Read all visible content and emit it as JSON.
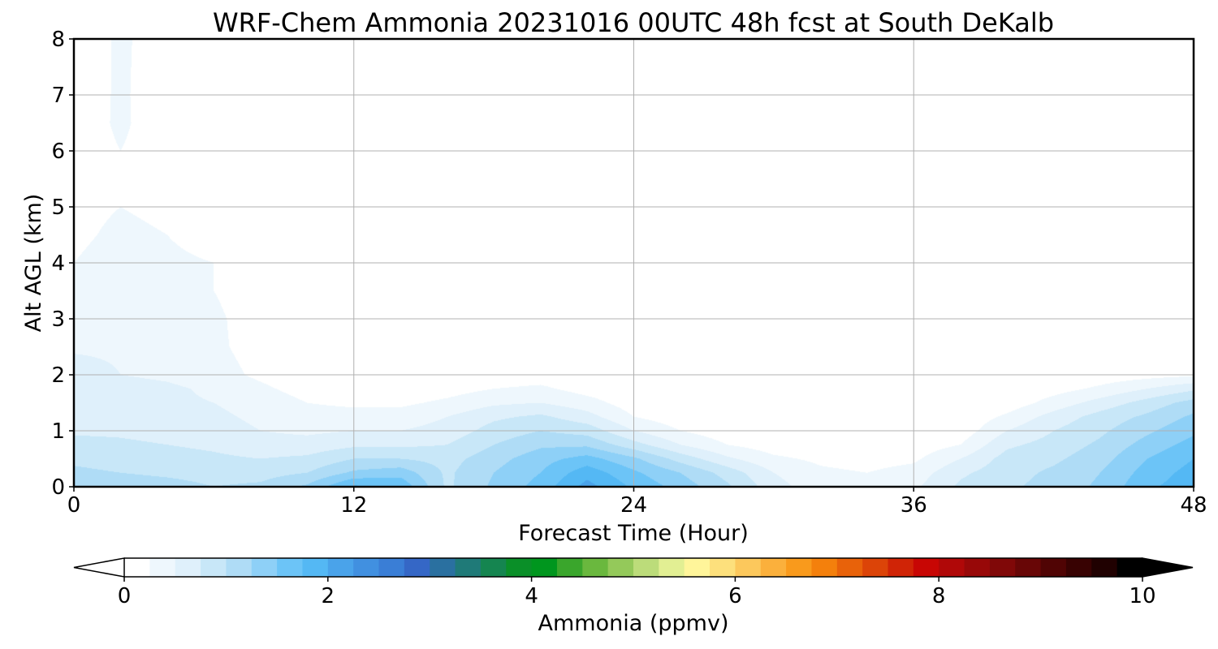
{
  "chart_data": {
    "type": "heatmap",
    "title": "WRF-Chem Ammonia  20231016 00UTC 48h fcst at South DeKalb",
    "xlabel": "Forecast Time (Hour)",
    "ylabel": "Alt AGL (km)",
    "xlim": [
      0,
      48
    ],
    "ylim": [
      0,
      8
    ],
    "xticks": [
      0,
      12,
      24,
      36,
      48
    ],
    "yticks": [
      0,
      1,
      2,
      3,
      4,
      5,
      6,
      7,
      8
    ],
    "grid": true,
    "colorbar": {
      "label": "Ammonia  (ppmv)",
      "min": 0,
      "max": 10,
      "ticks": [
        0,
        2,
        4,
        6,
        8,
        10
      ],
      "extend": "both",
      "orientation": "horizontal",
      "colors": [
        "#ffffff",
        "#eef7fd",
        "#dff0fb",
        "#c8e7f8",
        "#afdcf6",
        "#8ed0f7",
        "#6cc4f7",
        "#54b8f4",
        "#4aa3ea",
        "#4190e0",
        "#3a7ed6",
        "#3567c6",
        "#2a70a0",
        "#1f7a78",
        "#158550",
        "#0a8f28",
        "#00961e",
        "#3aa62c",
        "#6ab83e",
        "#94c95a",
        "#bcdc7a",
        "#e2ef93",
        "#fff59a",
        "#fde07c",
        "#fcc85c",
        "#fbb03c",
        "#f99a1c",
        "#f4800c",
        "#e8620a",
        "#dc4408",
        "#d02406",
        "#c80604",
        "#b00808",
        "#980808",
        "#800808",
        "#680606",
        "#500404",
        "#380202",
        "#200101",
        "#000000"
      ]
    },
    "x": [
      0,
      2,
      4,
      6,
      8,
      10,
      12,
      14,
      16,
      18,
      20,
      22,
      24,
      26,
      28,
      30,
      32,
      34,
      36,
      38,
      40,
      42,
      44,
      46,
      48
    ],
    "y": [
      0,
      0.25,
      0.5,
      0.75,
      1,
      1.25,
      1.5,
      1.75,
      2,
      2.5,
      3,
      3.5,
      4,
      4.5,
      5,
      5.5,
      6,
      6.5,
      7,
      7.5,
      8
    ],
    "z": [
      [
        1.15,
        1.15,
        1.1,
        1.0,
        1.05,
        1.3,
        1.8,
        1.7,
        0.95,
        1.3,
        1.6,
        2.1,
        1.7,
        1.4,
        1.05,
        0.6,
        0.35,
        0.3,
        0.45,
        0.8,
        0.95,
        1.1,
        1.3,
        1.7,
        1.9
      ],
      [
        1.05,
        1.0,
        0.95,
        0.9,
        0.9,
        1.0,
        1.3,
        1.4,
        0.95,
        1.25,
        1.5,
        1.9,
        1.55,
        1.25,
        0.9,
        0.5,
        0.3,
        0.25,
        0.35,
        0.7,
        0.9,
        1.05,
        1.25,
        1.6,
        1.85
      ],
      [
        0.95,
        0.9,
        0.85,
        0.8,
        0.75,
        0.8,
        1.0,
        1.0,
        0.9,
        1.15,
        1.4,
        1.6,
        1.3,
        0.9,
        0.55,
        0.3,
        0.2,
        0.15,
        0.2,
        0.5,
        0.85,
        0.95,
        1.15,
        1.5,
        1.75
      ],
      [
        0.85,
        0.8,
        0.75,
        0.7,
        0.6,
        0.6,
        0.7,
        0.7,
        0.75,
        1.0,
        1.2,
        1.2,
        0.85,
        0.5,
        0.25,
        0.12,
        0.08,
        0.08,
        0.1,
        0.25,
        0.7,
        0.85,
        1.05,
        1.35,
        1.6
      ],
      [
        0.7,
        0.7,
        0.65,
        0.6,
        0.5,
        0.45,
        0.5,
        0.5,
        0.6,
        0.85,
        1.0,
        0.9,
        0.5,
        0.25,
        0.1,
        0.05,
        0.04,
        0.04,
        0.05,
        0.1,
        0.5,
        0.75,
        0.95,
        1.2,
        1.45
      ],
      [
        0.65,
        0.65,
        0.6,
        0.55,
        0.45,
        0.35,
        0.35,
        0.35,
        0.5,
        0.7,
        0.8,
        0.6,
        0.25,
        0.1,
        0.05,
        0.03,
        0.02,
        0.02,
        0.03,
        0.05,
        0.3,
        0.6,
        0.85,
        1.05,
        1.3
      ],
      [
        0.65,
        0.6,
        0.55,
        0.5,
        0.4,
        0.25,
        0.2,
        0.2,
        0.3,
        0.45,
        0.5,
        0.35,
        0.12,
        0.05,
        0.03,
        0.02,
        0.01,
        0.01,
        0.01,
        0.03,
        0.1,
        0.35,
        0.6,
        0.85,
        1.1
      ],
      [
        0.7,
        0.6,
        0.55,
        0.45,
        0.3,
        0.15,
        0.1,
        0.1,
        0.15,
        0.25,
        0.3,
        0.15,
        0.05,
        0.02,
        0.01,
        0.01,
        0.01,
        0.01,
        0.01,
        0.01,
        0.04,
        0.15,
        0.3,
        0.5,
        0.7
      ],
      [
        0.65,
        0.5,
        0.45,
        0.35,
        0.2,
        0.08,
        0.05,
        0.05,
        0.06,
        0.1,
        0.12,
        0.05,
        0.02,
        0.01,
        0.01,
        0.01,
        0.01,
        0.01,
        0.01,
        0.01,
        0.01,
        0.05,
        0.1,
        0.15,
        0.2
      ],
      [
        0.45,
        0.45,
        0.4,
        0.3,
        0.15,
        0.05,
        0.02,
        0.02,
        0.02,
        0.03,
        0.03,
        0.02,
        0.01,
        0.01,
        0.01,
        0.01,
        0.01,
        0.01,
        0.01,
        0.01,
        0.01,
        0.01,
        0.02,
        0.02,
        0.03
      ],
      [
        0.35,
        0.4,
        0.45,
        0.3,
        0.12,
        0.03,
        0.01,
        0.01,
        0.01,
        0.01,
        0.01,
        0.01,
        0.01,
        0.01,
        0.01,
        0.01,
        0.01,
        0.01,
        0.01,
        0.01,
        0.01,
        0.01,
        0.01,
        0.01,
        0.01
      ],
      [
        0.3,
        0.35,
        0.35,
        0.25,
        0.1,
        0.02,
        0.01,
        0.01,
        0.01,
        0.01,
        0.01,
        0.01,
        0.01,
        0.01,
        0.01,
        0.01,
        0.01,
        0.01,
        0.01,
        0.01,
        0.01,
        0.01,
        0.01,
        0.01,
        0.01
      ],
      [
        0.25,
        0.35,
        0.3,
        0.25,
        0.1,
        0.02,
        0.01,
        0.01,
        0.01,
        0.01,
        0.01,
        0.01,
        0.01,
        0.01,
        0.01,
        0.01,
        0.01,
        0.01,
        0.01,
        0.01,
        0.01,
        0.01,
        0.01,
        0.01,
        0.01
      ],
      [
        0.2,
        0.3,
        0.25,
        0.15,
        0.08,
        0.02,
        0.01,
        0.01,
        0.01,
        0.01,
        0.01,
        0.01,
        0.01,
        0.01,
        0.01,
        0.01,
        0.01,
        0.01,
        0.01,
        0.01,
        0.01,
        0.01,
        0.01,
        0.01,
        0.01
      ],
      [
        0.18,
        0.25,
        0.2,
        0.1,
        0.05,
        0.02,
        0.01,
        0.01,
        0.01,
        0.01,
        0.01,
        0.01,
        0.01,
        0.01,
        0.01,
        0.01,
        0.01,
        0.01,
        0.01,
        0.01,
        0.01,
        0.01,
        0.01,
        0.01,
        0.01
      ],
      [
        0.15,
        0.2,
        0.15,
        0.08,
        0.04,
        0.01,
        0.01,
        0.01,
        0.01,
        0.01,
        0.01,
        0.01,
        0.01,
        0.01,
        0.01,
        0.01,
        0.01,
        0.01,
        0.01,
        0.01,
        0.01,
        0.01,
        0.01,
        0.01,
        0.01
      ],
      [
        0.1,
        0.25,
        0.1,
        0.05,
        0.02,
        0.01,
        0.01,
        0.01,
        0.01,
        0.01,
        0.01,
        0.01,
        0.01,
        0.01,
        0.01,
        0.01,
        0.01,
        0.01,
        0.01,
        0.01,
        0.01,
        0.01,
        0.01,
        0.01,
        0.01
      ],
      [
        0.08,
        0.3,
        0.08,
        0.04,
        0.02,
        0.01,
        0.01,
        0.01,
        0.01,
        0.01,
        0.01,
        0.01,
        0.01,
        0.01,
        0.01,
        0.01,
        0.01,
        0.01,
        0.01,
        0.01,
        0.01,
        0.01,
        0.01,
        0.01,
        0.01
      ],
      [
        0.06,
        0.3,
        0.06,
        0.04,
        0.02,
        0.01,
        0.01,
        0.01,
        0.01,
        0.01,
        0.01,
        0.01,
        0.01,
        0.01,
        0.01,
        0.01,
        0.01,
        0.01,
        0.01,
        0.01,
        0.01,
        0.01,
        0.01,
        0.01,
        0.01
      ],
      [
        0.05,
        0.3,
        0.08,
        0.05,
        0.02,
        0.01,
        0.01,
        0.01,
        0.01,
        0.01,
        0.01,
        0.01,
        0.01,
        0.01,
        0.01,
        0.01,
        0.01,
        0.01,
        0.01,
        0.01,
        0.01,
        0.01,
        0.01,
        0.01,
        0.01
      ],
      [
        0.05,
        0.3,
        0.1,
        0.05,
        0.02,
        0.01,
        0.01,
        0.01,
        0.01,
        0.01,
        0.01,
        0.01,
        0.01,
        0.01,
        0.01,
        0.01,
        0.01,
        0.01,
        0.01,
        0.01,
        0.01,
        0.01,
        0.01,
        0.01,
        0.01
      ]
    ]
  }
}
